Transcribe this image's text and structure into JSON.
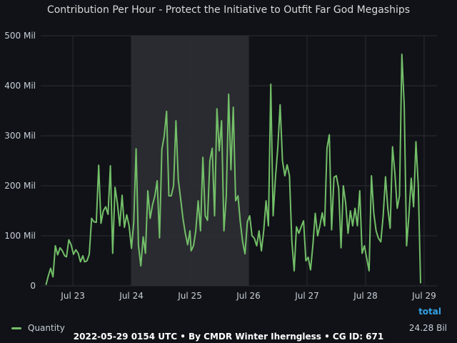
{
  "footer": "2022-05-29 0154 UTC • By CMDR Winter Iherngless • CG ID: 671",
  "colors": {
    "series": "#73bf69",
    "total_header": "#33a2e5",
    "band": "#2a2b30",
    "grid": "#2c2d33"
  },
  "chart_data": {
    "type": "line",
    "title": "Contribution Per Hour - Protect the Initiative to Outfit Far God Megaships",
    "xlabel": "",
    "ylabel": "",
    "x_unit": "day",
    "xlim": [
      22.45,
      29.22
    ],
    "ylim": [
      0,
      500
    ],
    "y_ticks": [
      0,
      100,
      200,
      300,
      400,
      500
    ],
    "y_tick_labels": [
      "0",
      "100 Mil",
      "200 Mil",
      "300 Mil",
      "400 Mil",
      "500 Mil"
    ],
    "x_ticks": [
      23,
      24,
      25,
      26,
      27,
      28,
      29
    ],
    "x_tick_labels": [
      "Jul 23",
      "Jul 24",
      "Jul 25",
      "Jul 26",
      "Jul 27",
      "Jul 28",
      "Jul 29"
    ],
    "highlight_band": [
      24.0,
      26.0
    ],
    "grid": true,
    "legend": {
      "position": "bottom-left",
      "header": "total"
    },
    "series": [
      {
        "name": "Quantity",
        "total": "24.28 Bil",
        "points": [
          [
            22.54,
            2
          ],
          [
            22.58,
            20
          ],
          [
            22.62,
            35
          ],
          [
            22.66,
            18
          ],
          [
            22.7,
            80
          ],
          [
            22.74,
            62
          ],
          [
            22.78,
            76
          ],
          [
            22.82,
            70
          ],
          [
            22.86,
            60
          ],
          [
            22.89,
            58
          ],
          [
            22.93,
            92
          ],
          [
            22.97,
            82
          ],
          [
            23.01,
            63
          ],
          [
            23.05,
            72
          ],
          [
            23.09,
            65
          ],
          [
            23.13,
            48
          ],
          [
            23.17,
            60
          ],
          [
            23.2,
            48
          ],
          [
            23.24,
            50
          ],
          [
            23.28,
            63
          ],
          [
            23.32,
            135
          ],
          [
            23.36,
            128
          ],
          [
            23.4,
            127
          ],
          [
            23.44,
            241
          ],
          [
            23.48,
            125
          ],
          [
            23.52,
            150
          ],
          [
            23.56,
            158
          ],
          [
            23.6,
            143
          ],
          [
            23.64,
            240
          ],
          [
            23.68,
            65
          ],
          [
            23.72,
            197
          ],
          [
            23.76,
            165
          ],
          [
            23.8,
            120
          ],
          [
            23.84,
            181
          ],
          [
            23.88,
            117
          ],
          [
            23.92,
            142
          ],
          [
            23.96,
            120
          ],
          [
            24.0,
            75
          ],
          [
            24.04,
            127
          ],
          [
            24.08,
            274
          ],
          [
            24.12,
            81
          ],
          [
            24.16,
            40
          ],
          [
            24.2,
            98
          ],
          [
            24.24,
            65
          ],
          [
            24.28,
            190
          ],
          [
            24.32,
            135
          ],
          [
            24.36,
            162
          ],
          [
            24.4,
            180
          ],
          [
            24.44,
            210
          ],
          [
            24.48,
            96
          ],
          [
            24.52,
            273
          ],
          [
            24.56,
            300
          ],
          [
            24.6,
            349
          ],
          [
            24.64,
            180
          ],
          [
            24.68,
            180
          ],
          [
            24.72,
            200
          ],
          [
            24.76,
            330
          ],
          [
            24.8,
            212
          ],
          [
            24.84,
            175
          ],
          [
            24.88,
            135
          ],
          [
            24.92,
            105
          ],
          [
            24.96,
            82
          ],
          [
            25.0,
            110
          ],
          [
            25.02,
            70
          ],
          [
            25.06,
            80
          ],
          [
            25.1,
            110
          ],
          [
            25.14,
            170
          ],
          [
            25.18,
            110
          ],
          [
            25.22,
            257
          ],
          [
            25.26,
            140
          ],
          [
            25.3,
            131
          ],
          [
            25.34,
            250
          ],
          [
            25.38,
            275
          ],
          [
            25.42,
            140
          ],
          [
            25.46,
            354
          ],
          [
            25.5,
            270
          ],
          [
            25.54,
            330
          ],
          [
            25.58,
            110
          ],
          [
            25.62,
            180
          ],
          [
            25.66,
            383
          ],
          [
            25.7,
            232
          ],
          [
            25.74,
            357
          ],
          [
            25.78,
            170
          ],
          [
            25.82,
            180
          ],
          [
            25.86,
            128
          ],
          [
            25.9,
            88
          ],
          [
            25.94,
            64
          ],
          [
            25.98,
            128
          ],
          [
            26.02,
            140
          ],
          [
            26.06,
            100
          ],
          [
            26.1,
            95
          ],
          [
            26.14,
            80
          ],
          [
            26.18,
            110
          ],
          [
            26.22,
            70
          ],
          [
            26.26,
            110
          ],
          [
            26.3,
            170
          ],
          [
            26.34,
            120
          ],
          [
            26.38,
            403
          ],
          [
            26.42,
            140
          ],
          [
            26.46,
            215
          ],
          [
            26.5,
            275
          ],
          [
            26.54,
            362
          ],
          [
            26.58,
            250
          ],
          [
            26.62,
            220
          ],
          [
            26.66,
            242
          ],
          [
            26.7,
            220
          ],
          [
            26.74,
            90
          ],
          [
            26.78,
            30
          ],
          [
            26.82,
            118
          ],
          [
            26.86,
            105
          ],
          [
            26.9,
            118
          ],
          [
            26.94,
            130
          ],
          [
            26.98,
            50
          ],
          [
            27.02,
            57
          ],
          [
            27.06,
            32
          ],
          [
            27.1,
            82
          ],
          [
            27.14,
            145
          ],
          [
            27.18,
            100
          ],
          [
            27.22,
            120
          ],
          [
            27.26,
            146
          ],
          [
            27.3,
            120
          ],
          [
            27.34,
            275
          ],
          [
            27.38,
            302
          ],
          [
            27.42,
            112
          ],
          [
            27.46,
            217
          ],
          [
            27.5,
            220
          ],
          [
            27.54,
            195
          ],
          [
            27.58,
            76
          ],
          [
            27.62,
            200
          ],
          [
            27.66,
            165
          ],
          [
            27.7,
            105
          ],
          [
            27.74,
            150
          ],
          [
            27.78,
            120
          ],
          [
            27.82,
            155
          ],
          [
            27.86,
            120
          ],
          [
            27.9,
            190
          ],
          [
            27.94,
            65
          ],
          [
            27.98,
            80
          ],
          [
            28.02,
            55
          ],
          [
            28.06,
            30
          ],
          [
            28.1,
            220
          ],
          [
            28.14,
            145
          ],
          [
            28.18,
            110
          ],
          [
            28.22,
            95
          ],
          [
            28.26,
            88
          ],
          [
            28.3,
            140
          ],
          [
            28.34,
            218
          ],
          [
            28.38,
            155
          ],
          [
            28.42,
            115
          ],
          [
            28.46,
            278
          ],
          [
            28.5,
            225
          ],
          [
            28.54,
            155
          ],
          [
            28.58,
            180
          ],
          [
            28.62,
            463
          ],
          [
            28.66,
            360
          ],
          [
            28.7,
            80
          ],
          [
            28.74,
            140
          ],
          [
            28.78,
            215
          ],
          [
            28.82,
            158
          ],
          [
            28.86,
            288
          ],
          [
            28.9,
            200
          ],
          [
            28.94,
            5
          ]
        ]
      }
    ]
  }
}
